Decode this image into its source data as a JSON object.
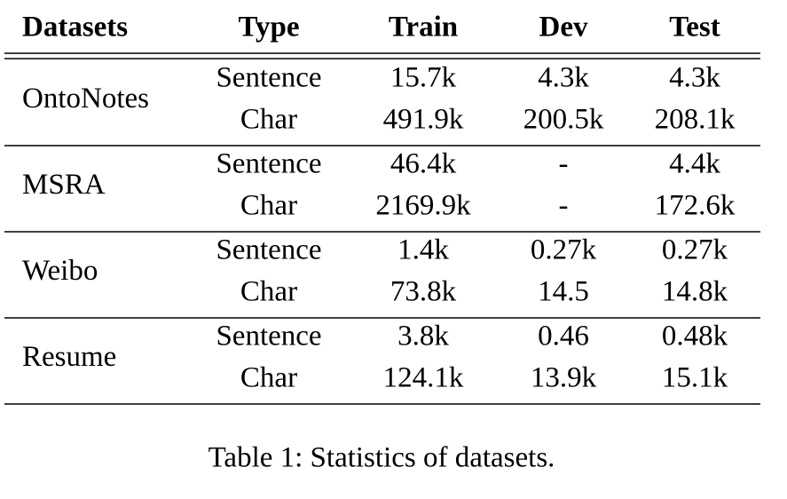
{
  "table": {
    "header": [
      "Datasets",
      "Type",
      "Train",
      "Dev",
      "Test"
    ],
    "groups": [
      {
        "name": "OntoNotes",
        "rows": [
          [
            "Sentence",
            "15.7k",
            "4.3k",
            "4.3k"
          ],
          [
            "Char",
            "491.9k",
            "200.5k",
            "208.1k"
          ]
        ]
      },
      {
        "name": "MSRA",
        "rows": [
          [
            "Sentence",
            "46.4k",
            "-",
            "4.4k"
          ],
          [
            "Char",
            "2169.9k",
            "-",
            "172.6k"
          ]
        ]
      },
      {
        "name": "Weibo",
        "rows": [
          [
            "Sentence",
            "1.4k",
            "0.27k",
            "0.27k"
          ],
          [
            "Char",
            "73.8k",
            "14.5",
            "14.8k"
          ]
        ]
      },
      {
        "name": "Resume",
        "rows": [
          [
            "Sentence",
            "3.8k",
            "0.46",
            "0.48k"
          ],
          [
            "Char",
            "124.1k",
            "13.9k",
            "15.1k"
          ]
        ]
      }
    ]
  },
  "caption": "Table 1: Statistics of datasets."
}
